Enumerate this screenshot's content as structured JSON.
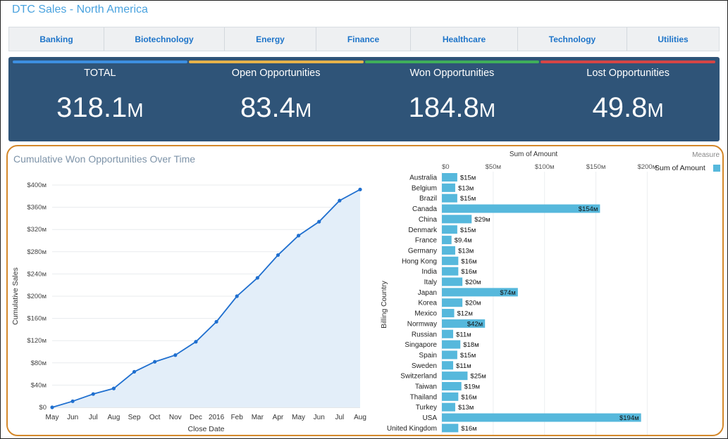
{
  "page_title": "DTC Sales - North America",
  "tabs": [
    "Banking",
    "Biotechnology",
    "Energy",
    "Finance",
    "Healthcare",
    "Technology",
    "Utilities"
  ],
  "kpis": [
    {
      "label": "TOTAL",
      "value": "318.1",
      "unit": "M",
      "color": "#3d8fe0"
    },
    {
      "label": "Open Opportunities",
      "value": "83.4",
      "unit": "M",
      "color": "#e6b24a"
    },
    {
      "label": "Won Opportunities",
      "value": "184.8",
      "unit": "M",
      "color": "#3fae5a"
    },
    {
      "label": "Lost Opportunities",
      "value": "49.8",
      "unit": "M",
      "color": "#d64545"
    }
  ],
  "chart_data": [
    {
      "type": "area",
      "title": "Cumulative Won Opportunities Over Time",
      "xlabel": "Close Date",
      "ylabel": "Cumulative Sales",
      "x": [
        "May",
        "Jun",
        "Jul",
        "Aug",
        "Sep",
        "Oct",
        "Nov",
        "Dec",
        "2016",
        "Feb",
        "Mar",
        "Apr",
        "May",
        "Jun",
        "Jul",
        "Aug"
      ],
      "values": [
        0,
        11,
        24,
        34,
        64,
        82,
        94,
        118,
        154,
        200,
        233,
        274,
        309,
        334,
        372,
        392
      ],
      "ylim": [
        0,
        400
      ],
      "yticks": [
        "$0",
        "$40м",
        "$80м",
        "$120м",
        "$160м",
        "$200м",
        "$240м",
        "$280м",
        "$320м",
        "$360м",
        "$400м"
      ],
      "grid": true,
      "line_color": "#1f6fcf",
      "fill_color": "#e3eef9"
    },
    {
      "type": "bar",
      "orientation": "horizontal",
      "title": "Sum of Amount",
      "ylabel": "Billing Country",
      "legend_title": "Measure",
      "legend": [
        "Sum of Amount"
      ],
      "legend_position": "top-right",
      "xlim": [
        0,
        210
      ],
      "xticks": [
        "$0",
        "$50м",
        "$100м",
        "$150м",
        "$200м"
      ],
      "bar_color": "#56b8dc",
      "categories": [
        "Australia",
        "Belgium",
        "Brazil",
        "Canada",
        "China",
        "Denmark",
        "France",
        "Germany",
        "Hong Kong",
        "India",
        "Italy",
        "Japan",
        "Korea",
        "Mexico",
        "Normway",
        "Russian",
        "Singapore",
        "Spain",
        "Sweden",
        "Switzerland",
        "Taiwan",
        "Thailand",
        "Turkey",
        "USA",
        "United Kingdom"
      ],
      "values": [
        15,
        13,
        15,
        154,
        29,
        15,
        9.4,
        13,
        16,
        16,
        20,
        74,
        20,
        12,
        42,
        11,
        18,
        15,
        11,
        25,
        19,
        16,
        13,
        194,
        16
      ],
      "labels": [
        "$15м",
        "$13м",
        "$15м",
        "$154м",
        "$29м",
        "$15м",
        "$9.4м",
        "$13м",
        "$16м",
        "$16м",
        "$20м",
        "$74м",
        "$20м",
        "$12м",
        "$42м",
        "$11м",
        "$18м",
        "$15м",
        "$11м",
        "$25м",
        "$19м",
        "$16м",
        "$13м",
        "$194м",
        "$16м"
      ]
    }
  ]
}
